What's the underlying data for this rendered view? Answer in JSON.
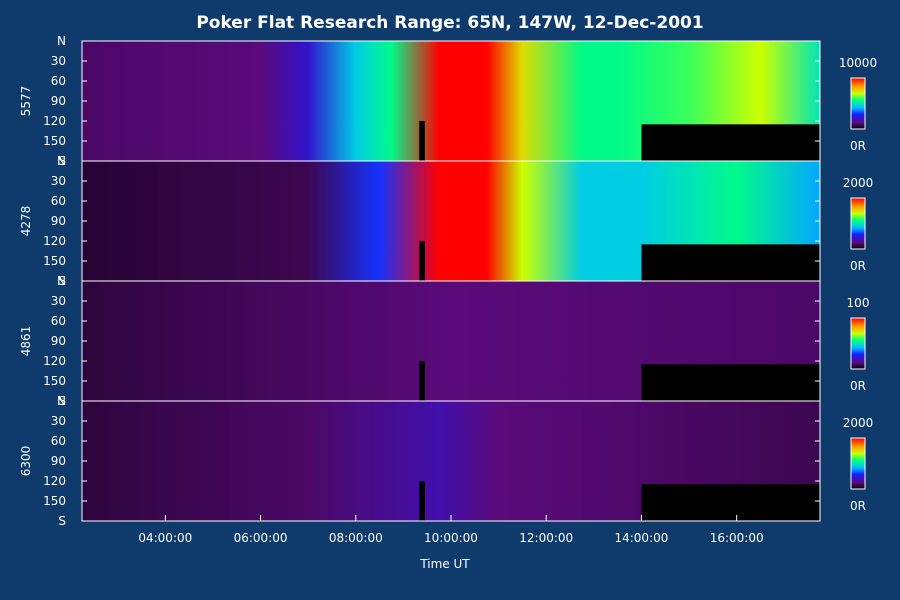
{
  "chart_data": {
    "type": "heatmap",
    "title": "Poker Flat Research Range: 65N, 147W, 12-Dec-2001",
    "xlabel": "Time UT",
    "xlim": [
      "02:15",
      "17:45"
    ],
    "x_ticks": [
      "04:00:00",
      "06:00:00",
      "08:00:00",
      "10:00:00",
      "12:00:00",
      "14:00:00",
      "16:00:00"
    ],
    "y_ticks": [
      "N",
      "30",
      "60",
      "90",
      "120",
      "150",
      "S"
    ],
    "ylim": [
      0,
      180
    ],
    "colorbar_min_label": "0R",
    "panels": [
      {
        "ylabel": "5577",
        "colorbar_max": 10000,
        "colorbar_max_label": "10000",
        "intensity": [
          {
            "time": "02:15",
            "level": 0.1
          },
          {
            "time": "06:00",
            "level": 0.12
          },
          {
            "time": "07:00",
            "level": 0.22
          },
          {
            "time": "08:00",
            "level": 0.45
          },
          {
            "time": "08:45",
            "level": 0.55
          },
          {
            "time": "09:45",
            "level": 1.0
          },
          {
            "time": "10:45",
            "level": 1.0
          },
          {
            "time": "11:30",
            "level": 0.75
          },
          {
            "time": "12:45",
            "level": 0.55
          },
          {
            "time": "13:30",
            "level": 0.55
          },
          {
            "time": "15:00",
            "level": 0.6
          },
          {
            "time": "16:30",
            "level": 0.7
          },
          {
            "time": "17:45",
            "level": 0.5
          }
        ]
      },
      {
        "ylabel": "4278",
        "colorbar_max": 2000,
        "colorbar_max_label": "2000",
        "intensity": [
          {
            "time": "02:15",
            "level": 0.05
          },
          {
            "time": "07:00",
            "level": 0.08
          },
          {
            "time": "08:30",
            "level": 0.3
          },
          {
            "time": "09:45",
            "level": 1.0
          },
          {
            "time": "10:45",
            "level": 1.0
          },
          {
            "time": "11:30",
            "level": 0.7
          },
          {
            "time": "12:45",
            "level": 0.45
          },
          {
            "time": "14:00",
            "level": 0.45
          },
          {
            "time": "16:00",
            "level": 0.55
          },
          {
            "time": "17:45",
            "level": 0.4
          }
        ]
      },
      {
        "ylabel": "4861",
        "colorbar_max": 100,
        "colorbar_max_label": "100",
        "intensity": [
          {
            "time": "02:15",
            "level": 0.06
          },
          {
            "time": "10:00",
            "level": 0.12
          },
          {
            "time": "17:45",
            "level": 0.1
          }
        ]
      },
      {
        "ylabel": "6300",
        "colorbar_max": 2000,
        "colorbar_max_label": "2000",
        "intensity": [
          {
            "time": "02:15",
            "level": 0.06
          },
          {
            "time": "07:00",
            "level": 0.1
          },
          {
            "time": "09:45",
            "level": 0.18
          },
          {
            "time": "11:00",
            "level": 0.12
          },
          {
            "time": "17:45",
            "level": 0.08
          }
        ]
      }
    ],
    "data_gaps": [
      {
        "start": "09:20",
        "end": "09:27",
        "from_angle": 120,
        "to_angle": 180
      },
      {
        "start": "14:00",
        "end": "17:45",
        "from_angle": 125,
        "to_angle": 180
      }
    ]
  }
}
